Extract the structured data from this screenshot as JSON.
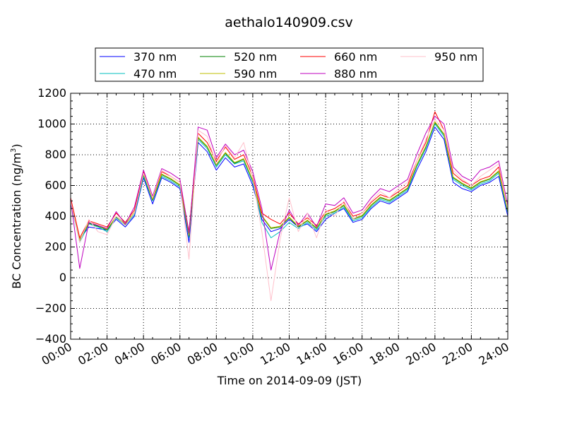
{
  "chart_data": {
    "type": "line",
    "title": "aethalo140909.csv",
    "xlabel": "Time on 2014-09-09 (JST)",
    "ylabel_main": "BC Concentration (ng/m",
    "ylabel_sup": "3",
    "ylabel_end": ")",
    "xlim": [
      0,
      24
    ],
    "ylim": [
      -400,
      1200
    ],
    "grid": true,
    "legend_position": "top-center-outside",
    "x_tick_values": [
      0,
      2,
      4,
      6,
      8,
      10,
      12,
      14,
      16,
      18,
      20,
      22,
      24
    ],
    "x_tick_labels": [
      "00:00",
      "02:00",
      "04:00",
      "06:00",
      "08:00",
      "10:00",
      "12:00",
      "14:00",
      "16:00",
      "18:00",
      "20:00",
      "22:00",
      "24:00"
    ],
    "y_tick_values": [
      -400,
      -200,
      0,
      200,
      400,
      600,
      800,
      1000,
      1200
    ],
    "y_tick_labels": [
      "−400",
      "−200",
      "0",
      "200",
      "400",
      "600",
      "800",
      "1000",
      "1200"
    ],
    "x": [
      0.0,
      0.5,
      1.0,
      1.5,
      2.0,
      2.5,
      3.0,
      3.5,
      4.0,
      4.5,
      5.0,
      5.5,
      6.0,
      6.5,
      7.0,
      7.5,
      8.0,
      8.5,
      9.0,
      9.5,
      10.0,
      10.5,
      11.0,
      11.5,
      12.0,
      12.5,
      13.0,
      13.5,
      14.0,
      14.5,
      15.0,
      15.5,
      16.0,
      16.5,
      17.0,
      17.5,
      18.0,
      18.5,
      19.0,
      19.5,
      20.0,
      20.5,
      21.0,
      21.5,
      22.0,
      22.5,
      23.0,
      23.5,
      24.0
    ],
    "series": [
      {
        "name": "370 nm",
        "color": "#0000ff",
        "values": [
          480,
          250,
          330,
          320,
          310,
          380,
          330,
          400,
          650,
          480,
          650,
          620,
          580,
          230,
          880,
          820,
          700,
          780,
          720,
          740,
          600,
          380,
          300,
          320,
          380,
          330,
          350,
          300,
          380,
          420,
          450,
          360,
          380,
          450,
          500,
          480,
          520,
          560,
          700,
          820,
          980,
          900,
          620,
          580,
          560,
          600,
          620,
          660,
          400
        ]
      },
      {
        "name": "470 nm",
        "color": "#00bfbf",
        "values": [
          490,
          230,
          350,
          330,
          300,
          390,
          340,
          410,
          660,
          500,
          660,
          630,
          590,
          260,
          900,
          840,
          720,
          800,
          740,
          760,
          620,
          360,
          260,
          300,
          360,
          320,
          360,
          310,
          400,
          420,
          460,
          370,
          390,
          460,
          510,
          490,
          530,
          570,
          720,
          840,
          1000,
          920,
          640,
          600,
          570,
          610,
          630,
          680,
          420
        ]
      },
      {
        "name": "520 nm",
        "color": "#008000",
        "values": [
          495,
          240,
          355,
          335,
          310,
          395,
          345,
          420,
          670,
          505,
          670,
          640,
          600,
          270,
          910,
          850,
          730,
          810,
          745,
          770,
          630,
          400,
          320,
          330,
          390,
          330,
          370,
          320,
          410,
          430,
          470,
          380,
          400,
          470,
          520,
          500,
          540,
          580,
          730,
          850,
          1010,
          930,
          650,
          610,
          580,
          620,
          640,
          690,
          430
        ]
      },
      {
        "name": "590 nm",
        "color": "#bfbf00",
        "values": [
          500,
          245,
          360,
          340,
          315,
          400,
          350,
          425,
          675,
          510,
          675,
          645,
          605,
          275,
          915,
          855,
          735,
          815,
          750,
          775,
          635,
          405,
          325,
          335,
          395,
          335,
          375,
          325,
          415,
          435,
          475,
          385,
          405,
          475,
          525,
          505,
          545,
          585,
          735,
          855,
          1015,
          935,
          655,
          615,
          585,
          625,
          645,
          695,
          435
        ]
      },
      {
        "name": "660 nm",
        "color": "#ff0000",
        "values": [
          520,
          260,
          370,
          350,
          330,
          420,
          360,
          440,
          690,
          520,
          690,
          660,
          620,
          300,
          940,
          880,
          760,
          850,
          770,
          800,
          660,
          420,
          380,
          350,
          420,
          350,
          390,
          340,
          430,
          450,
          490,
          400,
          420,
          490,
          540,
          520,
          560,
          600,
          760,
          880,
          1080,
          960,
          680,
          630,
          600,
          640,
          660,
          720,
          460
        ]
      },
      {
        "name": "880 nm",
        "color": "#bf00bf",
        "values": [
          510,
          60,
          360,
          340,
          320,
          430,
          350,
          460,
          700,
          530,
          710,
          680,
          640,
          290,
          980,
          960,
          780,
          870,
          800,
          830,
          690,
          450,
          50,
          300,
          440,
          340,
          420,
          330,
          480,
          470,
          520,
          420,
          440,
          520,
          580,
          560,
          600,
          640,
          800,
          940,
          1050,
          1000,
          720,
          660,
          630,
          700,
          720,
          760,
          470
        ]
      },
      {
        "name": "950 nm",
        "color": "#ffc0cb",
        "values": [
          500,
          230,
          380,
          300,
          280,
          400,
          340,
          420,
          680,
          520,
          700,
          660,
          620,
          120,
          960,
          920,
          740,
          860,
          780,
          880,
          650,
          300,
          -150,
          250,
          520,
          300,
          420,
          260,
          440,
          400,
          500,
          380,
          420,
          500,
          560,
          520,
          580,
          620,
          760,
          900,
          1030,
          960,
          700,
          640,
          600,
          660,
          700,
          740,
          450
        ]
      }
    ]
  }
}
